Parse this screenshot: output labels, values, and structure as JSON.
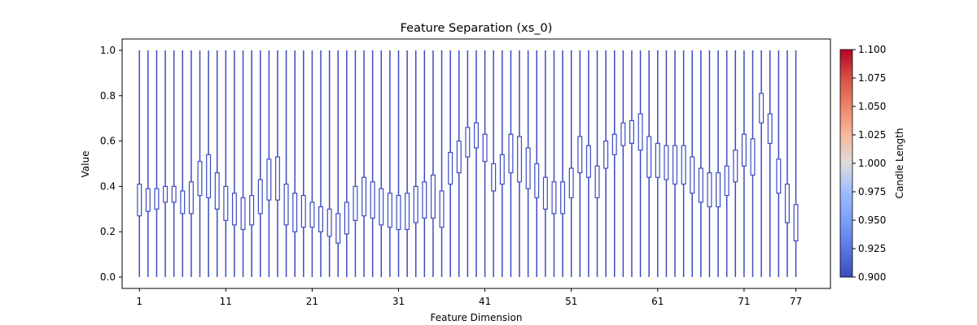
{
  "chart_data": {
    "type": "candlestick",
    "title": "Feature Separation (xs_0)",
    "xlabel": "Feature Dimension",
    "ylabel": "Value",
    "xlim": [
      -1,
      81
    ],
    "ylim": [
      -0.05,
      1.05
    ],
    "x_ticks": [
      1,
      11,
      21,
      31,
      41,
      51,
      61,
      71,
      77
    ],
    "y_ticks": [
      0.0,
      0.2,
      0.4,
      0.6,
      0.8,
      1.0
    ],
    "y_tick_labels": [
      "0.0",
      "0.2",
      "0.4",
      "0.6",
      "0.8",
      "1.0"
    ],
    "whisker_low": 0.0,
    "whisker_high": 1.0,
    "candle_color": "#3b4cc0",
    "boxes": [
      [
        0.27,
        0.41
      ],
      [
        0.29,
        0.39
      ],
      [
        0.3,
        0.39
      ],
      [
        0.33,
        0.4
      ],
      [
        0.33,
        0.4
      ],
      [
        0.28,
        0.38
      ],
      [
        0.28,
        0.42
      ],
      [
        0.36,
        0.51
      ],
      [
        0.35,
        0.54
      ],
      [
        0.3,
        0.46
      ],
      [
        0.25,
        0.4
      ],
      [
        0.23,
        0.37
      ],
      [
        0.21,
        0.35
      ],
      [
        0.23,
        0.36
      ],
      [
        0.28,
        0.43
      ],
      [
        0.34,
        0.52
      ],
      [
        0.34,
        0.53
      ],
      [
        0.23,
        0.41
      ],
      [
        0.2,
        0.37
      ],
      [
        0.22,
        0.36
      ],
      [
        0.22,
        0.33
      ],
      [
        0.2,
        0.31
      ],
      [
        0.18,
        0.3
      ],
      [
        0.15,
        0.28
      ],
      [
        0.19,
        0.33
      ],
      [
        0.25,
        0.4
      ],
      [
        0.27,
        0.44
      ],
      [
        0.26,
        0.42
      ],
      [
        0.23,
        0.39
      ],
      [
        0.22,
        0.37
      ],
      [
        0.21,
        0.36
      ],
      [
        0.21,
        0.37
      ],
      [
        0.24,
        0.4
      ],
      [
        0.26,
        0.42
      ],
      [
        0.26,
        0.45
      ],
      [
        0.22,
        0.38
      ],
      [
        0.41,
        0.55
      ],
      [
        0.46,
        0.6
      ],
      [
        0.53,
        0.66
      ],
      [
        0.57,
        0.68
      ],
      [
        0.51,
        0.63
      ],
      [
        0.38,
        0.5
      ],
      [
        0.41,
        0.54
      ],
      [
        0.46,
        0.63
      ],
      [
        0.42,
        0.62
      ],
      [
        0.39,
        0.57
      ],
      [
        0.35,
        0.5
      ],
      [
        0.3,
        0.44
      ],
      [
        0.28,
        0.42
      ],
      [
        0.28,
        0.42
      ],
      [
        0.35,
        0.48
      ],
      [
        0.46,
        0.62
      ],
      [
        0.44,
        0.58
      ],
      [
        0.35,
        0.49
      ],
      [
        0.48,
        0.6
      ],
      [
        0.54,
        0.63
      ],
      [
        0.58,
        0.68
      ],
      [
        0.59,
        0.69
      ],
      [
        0.56,
        0.72
      ],
      [
        0.44,
        0.62
      ],
      [
        0.44,
        0.59
      ],
      [
        0.43,
        0.58
      ],
      [
        0.41,
        0.58
      ],
      [
        0.41,
        0.58
      ],
      [
        0.37,
        0.53
      ],
      [
        0.33,
        0.48
      ],
      [
        0.31,
        0.46
      ],
      [
        0.31,
        0.46
      ],
      [
        0.36,
        0.49
      ],
      [
        0.42,
        0.56
      ],
      [
        0.49,
        0.63
      ],
      [
        0.45,
        0.61
      ],
      [
        0.68,
        0.81
      ],
      [
        0.59,
        0.72
      ],
      [
        0.37,
        0.52
      ],
      [
        0.24,
        0.41
      ],
      [
        0.16,
        0.32
      ]
    ],
    "colorbar": {
      "label": "Candle Length",
      "min": 0.9,
      "max": 1.1,
      "ticks": [
        "0.900",
        "0.925",
        "0.950",
        "0.975",
        "1.000",
        "1.025",
        "1.050",
        "1.075",
        "1.100"
      ]
    }
  }
}
